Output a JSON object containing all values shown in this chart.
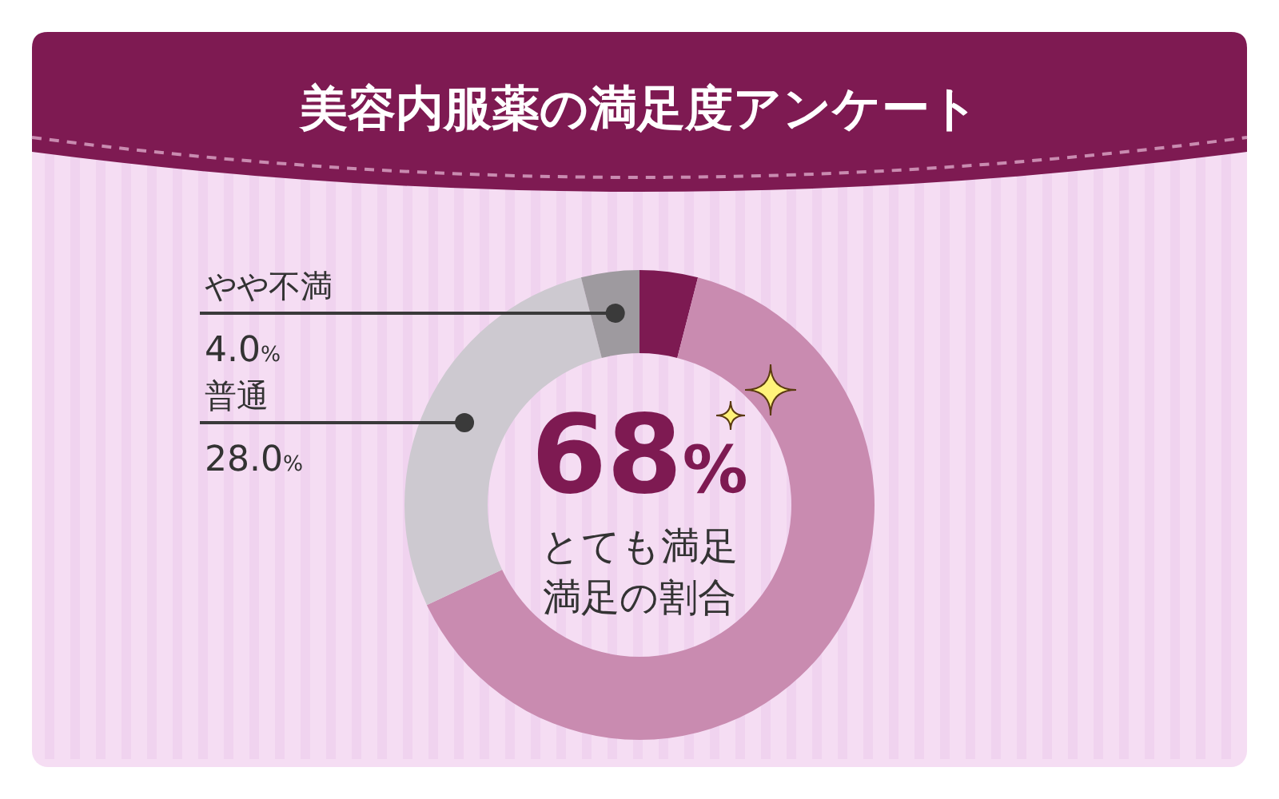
{
  "chart_data": {
    "type": "donut",
    "title": "美容内服薬の満足度アンケート",
    "categories": [
      null,
      null,
      "普通",
      "やや不満"
    ],
    "values": [
      4,
      64,
      28,
      4
    ],
    "colors": [
      "#7d1a52",
      "#c98bb0",
      "#cdc9d0",
      "#9e9a9f"
    ],
    "value_labels": [
      null,
      null,
      "28.0%",
      "4.0%"
    ],
    "annotations": [
      "68%",
      "とても満足",
      "満足の割合"
    ]
  }
}
